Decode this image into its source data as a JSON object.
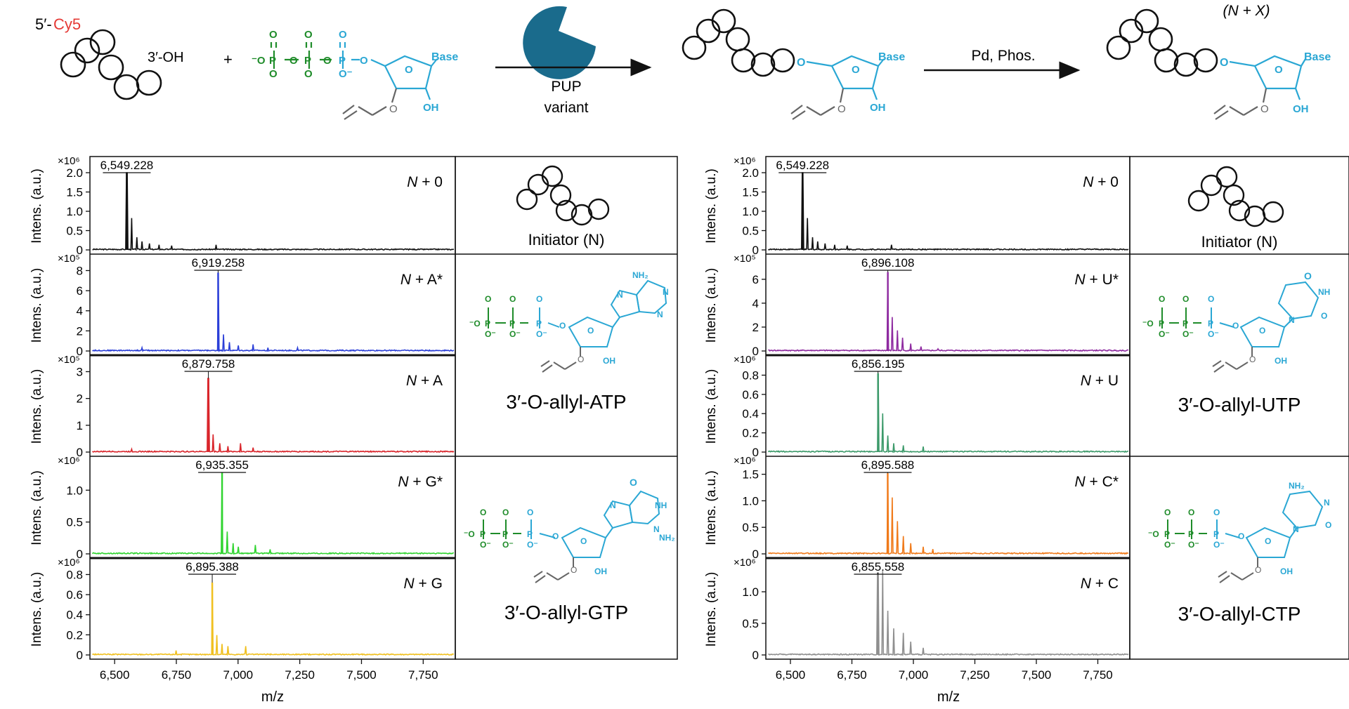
{
  "scheme": {
    "five_prime_label": "5′-",
    "cy5_label": "Cy5",
    "three_oh_label": "3′-OH",
    "plus_label": "+",
    "enzyme_line1": "PUP",
    "enzyme_line2": "variant",
    "deprotect_label": "Pd, Phos.",
    "product_label": "(N + X)",
    "base_label": "Base",
    "oh_label": "OH",
    "o_label": "O",
    "colors": {
      "cy5": "#e53935",
      "phosphate": "#1f8c2a",
      "sugar": "#2aa7d4",
      "enzyme": "#1a6b8c",
      "allyl": "#666666"
    }
  },
  "structures": {
    "initiator_label": "Initiator (N)",
    "atp_label": "3′-O-allyl-ATP",
    "gtp_label": "3′-O-allyl-GTP",
    "utp_label": "3′-O-allyl-UTP",
    "ctp_label": "3′-O-allyl-CTP",
    "nh2_label": "NH₂",
    "nh_label": "NH",
    "n_label": "N",
    "keto_label": "O"
  },
  "chart_data": [
    {
      "type": "line",
      "panel": "left",
      "xlabel": "m/z",
      "xlim": [
        6400,
        7880
      ],
      "xticks": [
        6500,
        6750,
        7000,
        7250,
        7500,
        7750
      ],
      "xtick_labels": [
        "6,500",
        "6,750",
        "7,000",
        "7,250",
        "7,500",
        "7,750"
      ],
      "ylabel": "Intens. (a.u.)",
      "subplots": [
        {
          "label": "N + 0",
          "color": "#111111",
          "multiplier": "×10⁶",
          "ylim": [
            0,
            2.2
          ],
          "yticks": [
            0,
            0.5,
            1.0,
            1.5,
            2.0
          ],
          "ytick_labels": [
            "0",
            "0.5",
            "1.0",
            "1.5",
            "2.0"
          ],
          "peak_mz": 6549.228,
          "peak_label": "6,549.228",
          "peak_height": 2.0,
          "secondary": [
            [
              6570,
              0.75
            ],
            [
              6590,
              0.3
            ],
            [
              6610,
              0.2
            ],
            [
              6640,
              0.15
            ],
            [
              6680,
              0.12
            ],
            [
              6730,
              0.1
            ],
            [
              6910,
              0.12
            ]
          ]
        },
        {
          "label": "N + A*",
          "color": "#2b3fd8",
          "multiplier": "×10⁵",
          "ylim": [
            0,
            8.8
          ],
          "yticks": [
            0,
            2,
            4,
            6,
            8
          ],
          "ytick_labels": [
            "0",
            "2",
            "4",
            "6",
            "8"
          ],
          "peak_mz": 6919.258,
          "peak_label": "6,919.258",
          "peak_height": 7.8,
          "secondary": [
            [
              6940,
              1.5
            ],
            [
              6965,
              0.8
            ],
            [
              7000,
              0.5
            ],
            [
              7060,
              0.6
            ],
            [
              7120,
              0.3
            ],
            [
              6610,
              0.3
            ],
            [
              7240,
              0.3
            ]
          ]
        },
        {
          "label": "N + A",
          "color": "#d9252b",
          "multiplier": "×10⁵",
          "ylim": [
            0,
            3.3
          ],
          "yticks": [
            0,
            1,
            2,
            3
          ],
          "ytick_labels": [
            "0",
            "1",
            "2",
            "3"
          ],
          "peak_mz": 6879.758,
          "peak_label": "6,879.758",
          "peak_height": 2.75,
          "secondary": [
            [
              6900,
              0.6
            ],
            [
              6925,
              0.3
            ],
            [
              6960,
              0.2
            ],
            [
              7010,
              0.3
            ],
            [
              7060,
              0.15
            ],
            [
              6570,
              0.1
            ]
          ]
        },
        {
          "label": "N + G*",
          "color": "#2fd42f",
          "multiplier": "×10⁶",
          "ylim": [
            0,
            1.4
          ],
          "yticks": [
            0,
            0.5,
            1.0
          ],
          "ytick_labels": [
            "0",
            "0.5",
            "1.0"
          ],
          "peak_mz": 6935.355,
          "peak_label": "6,935.355",
          "peak_height": 1.28,
          "secondary": [
            [
              6955,
              0.25
            ],
            [
              6980,
              0.12
            ],
            [
              7000,
              0.08
            ],
            [
              7070,
              0.1
            ],
            [
              7130,
              0.05
            ]
          ]
        },
        {
          "label": "N + G",
          "color": "#f0c020",
          "multiplier": "×10⁶",
          "ylim": [
            0,
            0.88
          ],
          "yticks": [
            0,
            0.2,
            0.4,
            0.6,
            0.8
          ],
          "ytick_labels": [
            "0",
            "0.2",
            "0.4",
            "0.6",
            "0.8"
          ],
          "peak_mz": 6895.388,
          "peak_label": "6,895.388",
          "peak_height": 0.72,
          "secondary": [
            [
              6915,
              0.18
            ],
            [
              6935,
              0.1
            ],
            [
              6960,
              0.08
            ],
            [
              7030,
              0.08
            ],
            [
              6750,
              0.04
            ]
          ]
        }
      ]
    },
    {
      "type": "line",
      "panel": "right",
      "xlabel": "m/z",
      "xlim": [
        6400,
        7880
      ],
      "xticks": [
        6500,
        6750,
        7000,
        7250,
        7500,
        7750
      ],
      "xtick_labels": [
        "6,500",
        "6,750",
        "7,000",
        "7,250",
        "7,500",
        "7,750"
      ],
      "ylabel": "Intens. (a.u.)",
      "subplots": [
        {
          "label": "N + 0",
          "color": "#111111",
          "multiplier": "×10⁶",
          "ylim": [
            0,
            2.2
          ],
          "yticks": [
            0,
            0.5,
            1.0,
            1.5,
            2.0
          ],
          "ytick_labels": [
            "0",
            "0.5",
            "1.0",
            "1.5",
            "2.0"
          ],
          "peak_mz": 6549.228,
          "peak_label": "6,549.228",
          "peak_height": 2.0,
          "secondary": [
            [
              6570,
              0.75
            ],
            [
              6590,
              0.3
            ],
            [
              6610,
              0.2
            ],
            [
              6640,
              0.15
            ],
            [
              6680,
              0.12
            ],
            [
              6730,
              0.1
            ],
            [
              6910,
              0.12
            ]
          ]
        },
        {
          "label": "N + U*",
          "color": "#8e2aa0",
          "multiplier": "×10⁵",
          "ylim": [
            0,
            7.4
          ],
          "yticks": [
            0,
            2,
            4,
            6
          ],
          "ytick_labels": [
            "0",
            "2",
            "4",
            "6"
          ],
          "peak_mz": 6896.108,
          "peak_label": "6,896.108",
          "peak_height": 6.6,
          "secondary": [
            [
              6915,
              2.3
            ],
            [
              6935,
              1.4
            ],
            [
              6955,
              0.9
            ],
            [
              6990,
              0.5
            ],
            [
              7030,
              0.3
            ],
            [
              7100,
              0.15
            ]
          ]
        },
        {
          "label": "N + U",
          "color": "#3c9a6a",
          "multiplier": "×10⁶",
          "ylim": [
            0,
            0.92
          ],
          "yticks": [
            0,
            0.2,
            0.4,
            0.6,
            0.8
          ],
          "ytick_labels": [
            "0",
            "0.2",
            "0.4",
            "0.6",
            "0.8"
          ],
          "peak_mz": 6856.195,
          "peak_label": "6,856.195",
          "peak_height": 0.82,
          "secondary": [
            [
              6876,
              0.35
            ],
            [
              6895,
              0.15
            ],
            [
              6920,
              0.08
            ],
            [
              6960,
              0.06
            ],
            [
              7040,
              0.05
            ]
          ]
        },
        {
          "label": "N + C*",
          "color": "#f07a1a",
          "multiplier": "×10⁶",
          "ylim": [
            0,
            1.68
          ],
          "yticks": [
            0,
            0.5,
            1.0,
            1.5
          ],
          "ytick_labels": [
            "0",
            "0.5",
            "1.0",
            "1.5"
          ],
          "peak_mz": 6895.588,
          "peak_label": "6,895.588",
          "peak_height": 1.52,
          "secondary": [
            [
              6915,
              0.95
            ],
            [
              6935,
              0.55
            ],
            [
              6960,
              0.3
            ],
            [
              6990,
              0.18
            ],
            [
              7040,
              0.12
            ],
            [
              7080,
              0.08
            ]
          ]
        },
        {
          "label": "N + C",
          "color": "#8f8f8f",
          "multiplier": "×10⁶",
          "ylim": [
            0,
            1.4
          ],
          "yticks": [
            0,
            0.5,
            1.0
          ],
          "ytick_labels": [
            "0",
            "0.5",
            "1.0"
          ],
          "peak_mz": 6855.558,
          "peak_label": "6,855.558",
          "peak_height": 1.3,
          "secondary": [
            [
              6875,
              0.95
            ],
            [
              6895,
              0.5
            ],
            [
              6920,
              0.3
            ],
            [
              6960,
              0.25
            ],
            [
              6990,
              0.15
            ],
            [
              7040,
              0.08
            ]
          ]
        }
      ]
    }
  ]
}
